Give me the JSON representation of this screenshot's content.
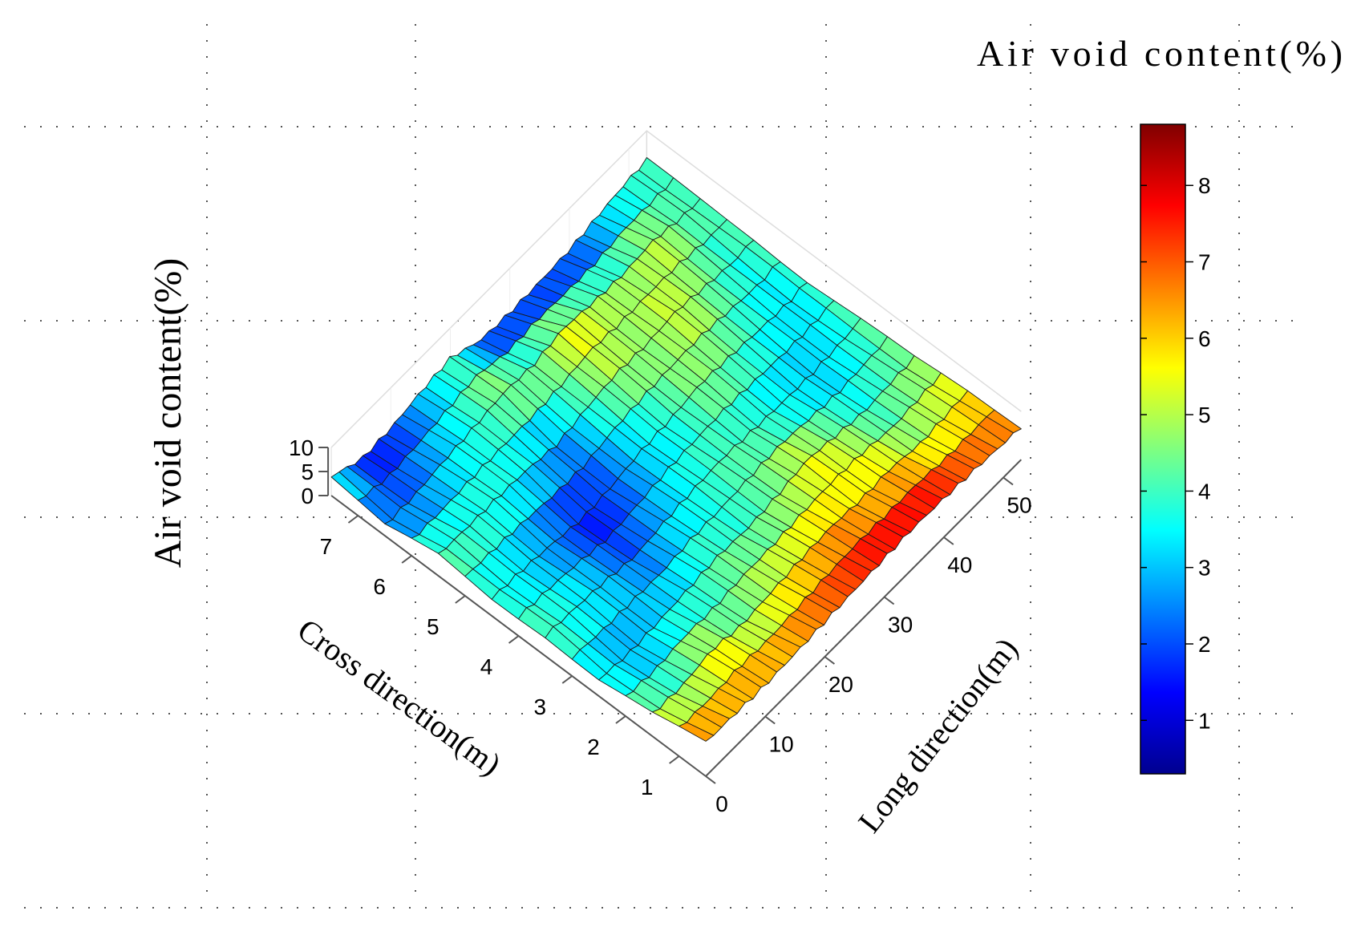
{
  "chart_data": {
    "type": "surface",
    "title": "",
    "colorbar": {
      "title": "Air void content(%)",
      "ticks": [
        1,
        2,
        3,
        4,
        5,
        6,
        7,
        8
      ],
      "range": [
        0.3,
        8.8
      ],
      "colormap": "jet"
    },
    "zlabel": "Air void content(%)",
    "zticks": [
      0,
      5,
      10
    ],
    "zlim": [
      0,
      10
    ],
    "xlabel": "Long direction(m)",
    "xticks": [
      0,
      10,
      20,
      30,
      40,
      50
    ],
    "xlim": [
      0,
      53
    ],
    "ylabel": "Cross direction(m)",
    "yticks": [
      1,
      2,
      3,
      4,
      5,
      6,
      7
    ],
    "ylim": [
      0.5,
      7.5
    ],
    "grid": "dotted",
    "surface": {
      "long_positions_m": [
        0,
        5,
        10,
        15,
        20,
        25,
        30,
        35,
        40,
        45,
        50,
        53
      ],
      "cross_positions_m": [
        0.5,
        1.5,
        2.5,
        3.5,
        4.5,
        5.5,
        6.5,
        7.5
      ],
      "rows_by_cross_position": [
        [
          7.0,
          6.8,
          6.5,
          6.8,
          7.2,
          7.6,
          8.0,
          8.3,
          8.0,
          7.6,
          7.0,
          6.8
        ],
        [
          4.6,
          4.2,
          5.5,
          4.4,
          5.1,
          5.8,
          6.2,
          5.6,
          5.9,
          4.9,
          5.5,
          5.9
        ],
        [
          3.4,
          2.6,
          3.0,
          3.6,
          4.2,
          3.8,
          4.4,
          5.6,
          4.6,
          3.7,
          4.3,
          4.5
        ],
        [
          4.2,
          3.7,
          3.1,
          2.0,
          3.0,
          3.7,
          4.1,
          3.6,
          3.2,
          3.0,
          3.5,
          4.2
        ],
        [
          3.6,
          3.2,
          2.4,
          1.3,
          1.9,
          3.1,
          3.6,
          4.7,
          4.2,
          3.6,
          3.2,
          3.8
        ],
        [
          4.3,
          4.0,
          3.9,
          3.5,
          2.5,
          3.9,
          4.9,
          4.6,
          5.4,
          4.4,
          3.6,
          4.3
        ],
        [
          2.1,
          2.2,
          3.2,
          3.9,
          4.9,
          4.5,
          5.8,
          5.0,
          4.6,
          5.3,
          4.2,
          4.1
        ],
        [
          4.0,
          1.3,
          1.6,
          2.9,
          3.8,
          1.2,
          0.8,
          1.0,
          1.4,
          2.6,
          3.7,
          4.0
        ]
      ]
    }
  }
}
